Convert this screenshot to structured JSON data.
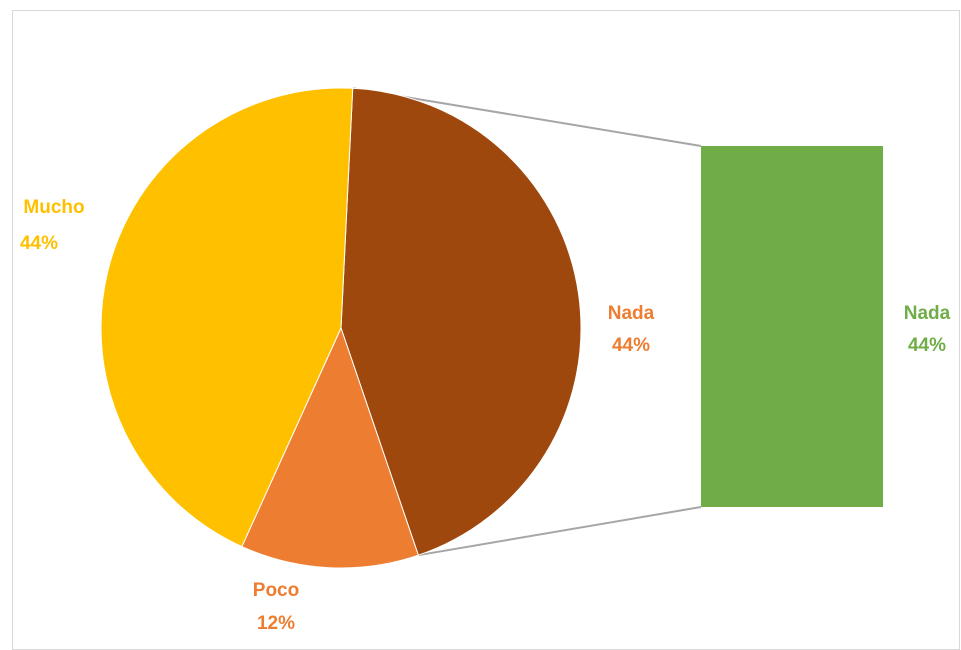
{
  "chart_data": {
    "type": "pie",
    "subtype": "bar-of-pie",
    "slices": [
      {
        "label": "Mucho",
        "value": 44,
        "value_text": "44%",
        "color": "#FFC000"
      },
      {
        "label": "Poco",
        "value": 12,
        "value_text": "12%",
        "color": "#ED7D31"
      },
      {
        "label": "Nada",
        "value": 44,
        "value_text": "44%",
        "color": "#9E480E"
      }
    ],
    "secondary_bar": {
      "label": "Nada",
      "value": 44,
      "value_text": "44%",
      "color": "#70AD47"
    },
    "label_colors": {
      "Mucho": "#FFC000",
      "Poco": "#ED7D31",
      "Nada": "#ED7D31",
      "bar": "#70AD47"
    },
    "legend": "none"
  }
}
